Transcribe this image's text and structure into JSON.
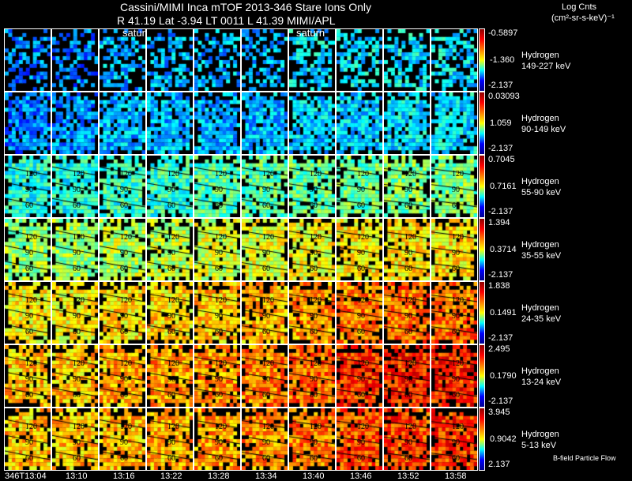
{
  "chart_data": {
    "type": "heatmap",
    "title": "Cassini/MIMI Inca mTOF  2013-346   Stare   Ions Only",
    "subtitle": "R          41.19 Lat -3.94 LT 0011 L          41.39  MIMI/APL",
    "overlay_labels": [
      "satur",
      "saturn"
    ],
    "colorbar_title": "Log Cnts",
    "colorbar_units": "(cm²-sr-s-keV)⁻¹",
    "time_ticks": [
      "346T13:04",
      "13:10",
      "13:16",
      "13:22",
      "13:28",
      "13:34",
      "13:40",
      "13:46",
      "13:52",
      "13:58"
    ],
    "contour_labels": [
      "120",
      "90",
      "60"
    ],
    "footer_note": "B-field Particle Flow",
    "rows": [
      {
        "species": "Hydrogen",
        "energy": "149-227 keV",
        "cmax": "-0.5897",
        "cmid": "-1.360",
        "cmin": "-2.137",
        "levels": [
          0.25,
          0.25,
          0.3,
          0.3,
          0.3,
          0.3,
          0.35,
          0.35,
          0.35,
          0.35
        ],
        "fill": 0.55,
        "contours": false
      },
      {
        "species": "Hydrogen",
        "energy": "90-149 keV",
        "cmax": "0.03093",
        "cmid": "1.059",
        "cmin": "-2.137",
        "levels": [
          0.25,
          0.27,
          0.3,
          0.3,
          0.3,
          0.3,
          0.33,
          0.33,
          0.35,
          0.35
        ],
        "fill": 0.85,
        "contours": false
      },
      {
        "species": "Hydrogen",
        "energy": "55-90 keV",
        "cmax": "0.7045",
        "cmid": "0.7161",
        "cmin": "-2.137",
        "levels": [
          0.4,
          0.4,
          0.42,
          0.42,
          0.45,
          0.45,
          0.47,
          0.48,
          0.5,
          0.5
        ],
        "fill": 0.9,
        "contours": true
      },
      {
        "species": "Hydrogen",
        "energy": "35-55 keV",
        "cmax": "1.394",
        "cmid": "0.3714",
        "cmin": "-2.137",
        "levels": [
          0.52,
          0.53,
          0.55,
          0.56,
          0.58,
          0.6,
          0.62,
          0.64,
          0.65,
          0.65
        ],
        "fill": 0.9,
        "contours": true
      },
      {
        "species": "Hydrogen",
        "energy": "24-35 keV",
        "cmax": "1.838",
        "cmid": "0.1491",
        "cmin": "-2.137",
        "levels": [
          0.63,
          0.63,
          0.65,
          0.66,
          0.68,
          0.7,
          0.73,
          0.76,
          0.76,
          0.77
        ],
        "fill": 0.9,
        "contours": true
      },
      {
        "species": "Hydrogen",
        "energy": "13-24 keV",
        "cmax": "2.495",
        "cmid": "0.1790",
        "cmin": "-2.137",
        "levels": [
          0.68,
          0.68,
          0.7,
          0.72,
          0.73,
          0.75,
          0.78,
          0.83,
          0.84,
          0.84
        ],
        "fill": 0.9,
        "contours": true
      },
      {
        "species": "Hydrogen",
        "energy": "5-13 keV",
        "cmax": "3.945",
        "cmid": "0.9042",
        "cmin": "2.137",
        "levels": [
          0.68,
          0.68,
          0.69,
          0.7,
          0.72,
          0.74,
          0.76,
          0.8,
          0.81,
          0.82
        ],
        "fill": 0.9,
        "contours": true
      }
    ]
  }
}
